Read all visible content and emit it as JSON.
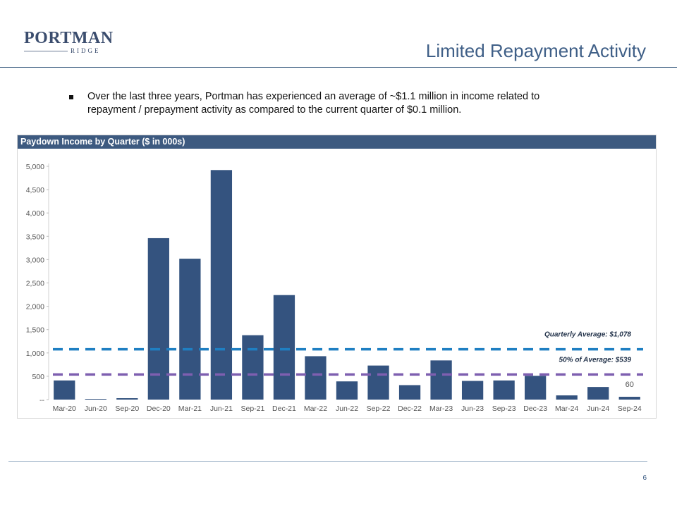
{
  "logo": {
    "main": "PORTMAN",
    "sub": "RIDGE"
  },
  "slide": {
    "title": "Limited Repayment Activity",
    "bullet": "Over the last three years, Portman has experienced an average of ~$1.1 million in income related to repayment / prepayment activity as compared to the current quarter of $0.1 million.",
    "page_number": "6"
  },
  "colors": {
    "bar": "#34537f",
    "avg_line": "#1f7fc2",
    "half_avg_line": "#7e5fb0",
    "header_bg": "#3d5a80"
  },
  "chart_data": {
    "type": "bar",
    "title": "Paydown Income by Quarter ($ in 000s)",
    "categories": [
      "Mar-20",
      "Jun-20",
      "Sep-20",
      "Dec-20",
      "Mar-21",
      "Jun-21",
      "Sep-21",
      "Dec-21",
      "Mar-22",
      "Jun-22",
      "Sep-22",
      "Dec-22",
      "Mar-23",
      "Jun-23",
      "Sep-23",
      "Dec-23",
      "Mar-24",
      "Jun-24",
      "Sep-24"
    ],
    "values": [
      410,
      15,
      30,
      3460,
      3020,
      4920,
      1380,
      2240,
      930,
      390,
      730,
      310,
      840,
      400,
      410,
      510,
      90,
      270,
      60
    ],
    "ylim": [
      0,
      5000
    ],
    "yticks": [
      0,
      500,
      1000,
      1500,
      2000,
      2500,
      3000,
      3500,
      4000,
      4500,
      5000
    ],
    "ytick_labels": [
      "--",
      "500",
      "1,000",
      "1,500",
      "2,000",
      "2,500",
      "3,000",
      "3,500",
      "4,000",
      "4,500",
      "5,000"
    ],
    "reference_lines": [
      {
        "name": "Quarterly Average",
        "value": 1078,
        "label": "Quarterly Average: $1,078"
      },
      {
        "name": "50% of Average",
        "value": 539,
        "label": "50% of Average: $539"
      }
    ],
    "data_labels": [
      {
        "index": 18,
        "text": "60"
      }
    ],
    "xlabel": "",
    "ylabel": ""
  }
}
